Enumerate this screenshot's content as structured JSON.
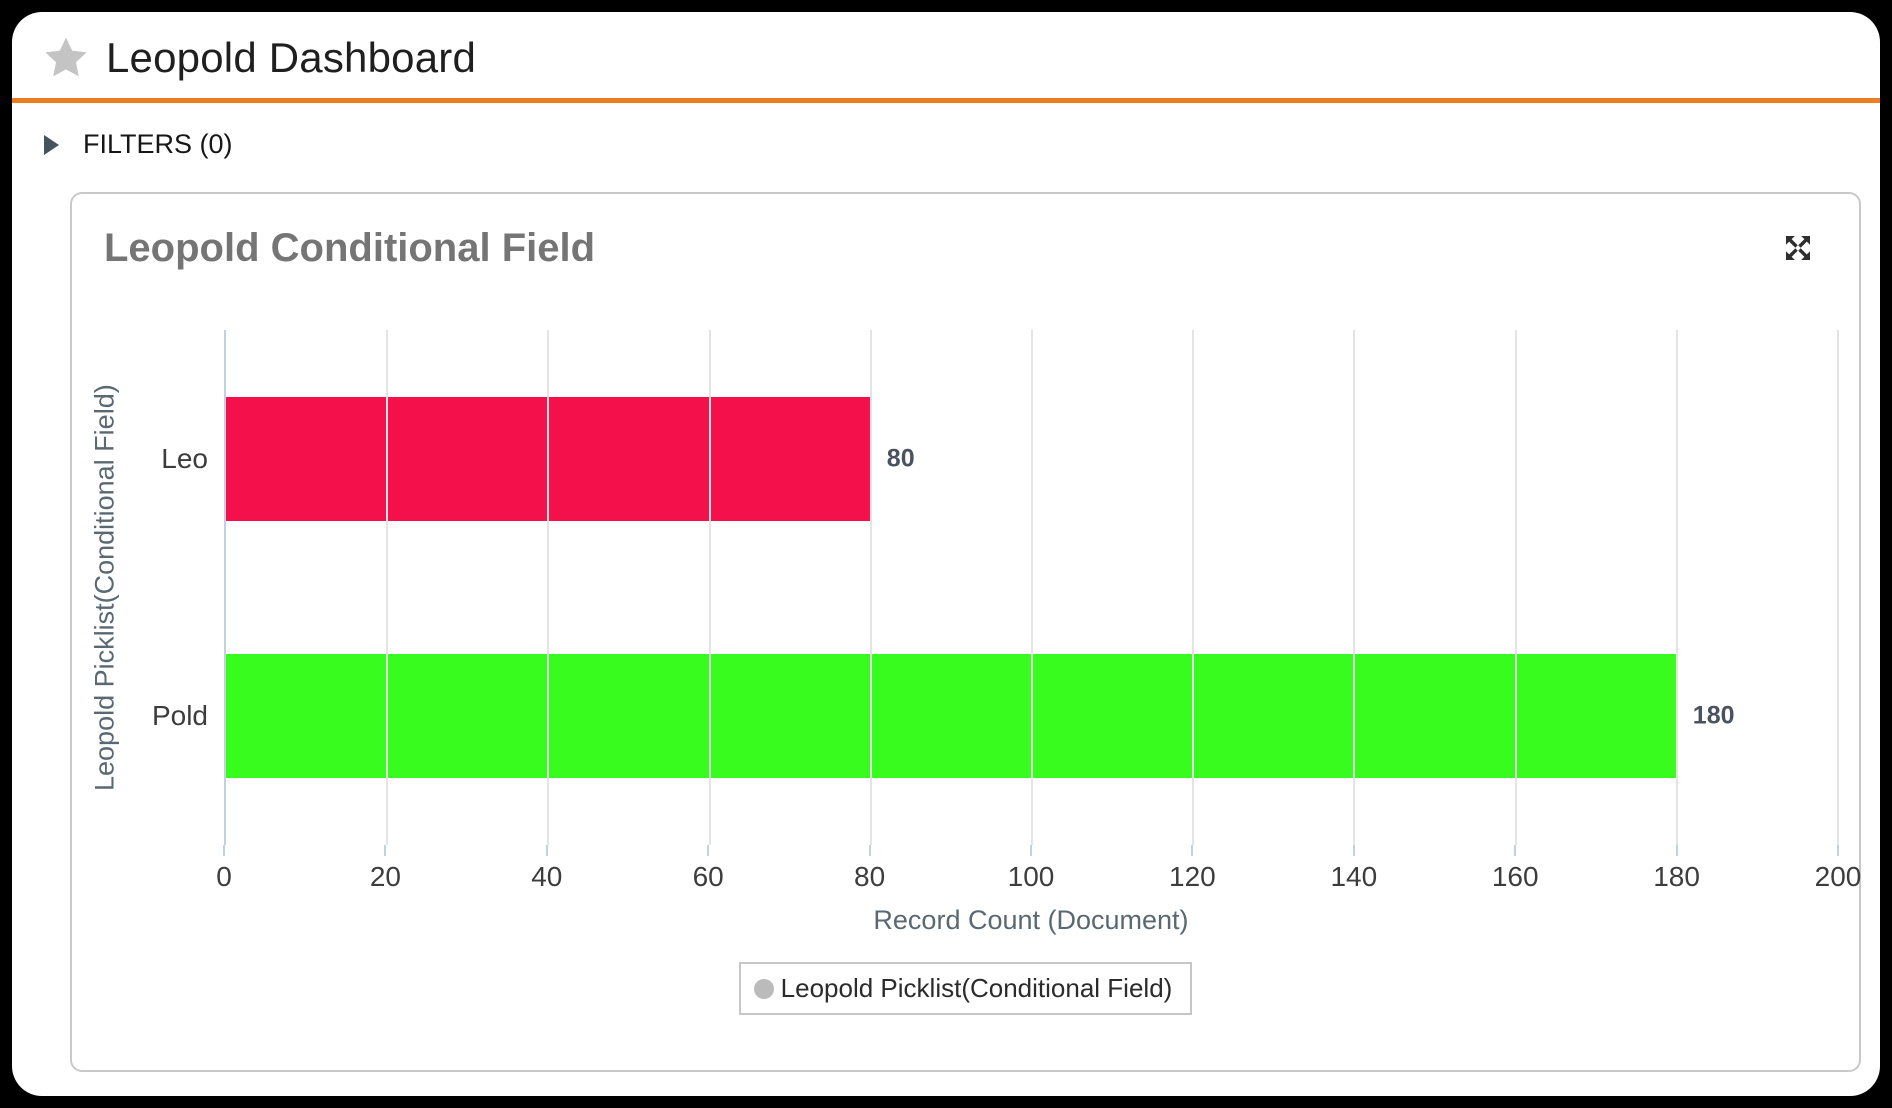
{
  "header": {
    "title": "Leopold Dashboard"
  },
  "filters": {
    "label": "FILTERS (0)",
    "count": 0,
    "expanded": false
  },
  "card": {
    "title": "Leopold Conditional Field"
  },
  "colors": {
    "accent_orange": "#ED7D22",
    "star_gray": "#C4C4C4",
    "axis_line": "#C3CFE3",
    "gridline": "#E4E4E4",
    "legend_marker": "#BBBBBB"
  },
  "chart_data": {
    "type": "bar",
    "orientation": "horizontal",
    "title": "Leopold Conditional Field",
    "categories": [
      "Leo",
      "Pold"
    ],
    "values": [
      80,
      180
    ],
    "bar_colors": [
      "#F4104A",
      "#38FC1E"
    ],
    "value_label_color": "#4A5260",
    "xlabel": "Record Count (Document)",
    "ylabel": "Leopold Picklist(Conditional Field)",
    "xlim": [
      0,
      200
    ],
    "xticks": [
      0,
      20,
      40,
      60,
      80,
      100,
      120,
      140,
      160,
      180,
      200
    ],
    "grid": true,
    "legend": {
      "label": "Leopold Picklist(Conditional Field)",
      "marker_color": "#BBBBBB",
      "position": "bottom"
    }
  }
}
